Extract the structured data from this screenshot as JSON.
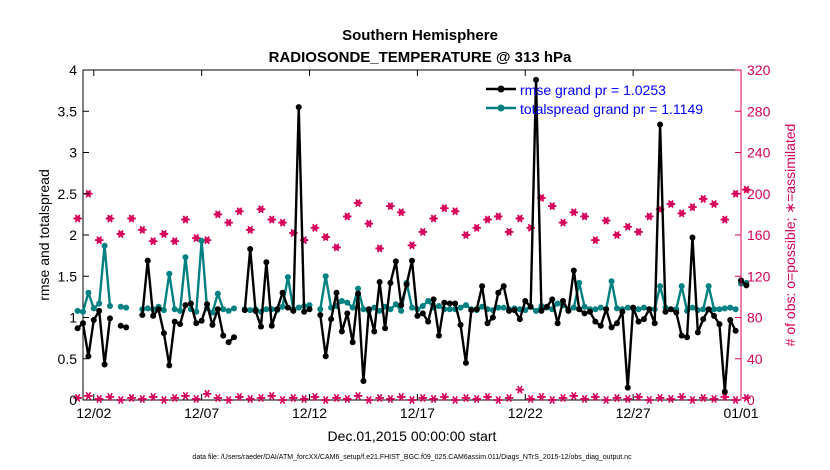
{
  "chart_data": {
    "type": "line",
    "title": "Southern Hemisphere",
    "subtitle": "RADIOSONDE_TEMPERATURE @ 313 hPa",
    "xlabel": "Dec.01,2015 00:00:00 start",
    "ylabel_left": "rmse and totalspread",
    "ylabel_right": "# of obs: o=possible; ∗=assimilated",
    "footnote": "data file: /Users/raeder/DAI/ATM_forcXX/CAM6_setup/f.e21.FHIST_BGC.f09_025.CAM6assim.011/Diags_NTrS_2015-12/obs_diag_output.nc",
    "xlim": [
      1.5,
      32.0
    ],
    "ylim_left": [
      0,
      4
    ],
    "ylim_right": [
      0,
      320
    ],
    "x_ticks": [
      2,
      7,
      12,
      17,
      22,
      27,
      32
    ],
    "x_tick_labels": [
      "12/02",
      "12/07",
      "12/12",
      "12/17",
      "12/22",
      "12/27",
      "01/01"
    ],
    "y_ticks_left": [
      0,
      0.5,
      1,
      1.5,
      2,
      2.5,
      3,
      3.5,
      4
    ],
    "y_tick_labels_left": [
      "0",
      "0.5",
      "1",
      "1.5",
      "2",
      "2.5",
      "3",
      "3.5",
      "4"
    ],
    "y_ticks_right": [
      0,
      40,
      80,
      120,
      160,
      200,
      240,
      280,
      320
    ],
    "y_tick_labels_right": [
      "0",
      "40",
      "80",
      "120",
      "160",
      "200",
      "240",
      "280",
      "320"
    ],
    "colors": {
      "rmse": "#000000",
      "spread": "#008080",
      "obs": "#d6005a",
      "legend_text": "#0000ff"
    },
    "legend": {
      "position": "top-right",
      "entries": [
        "rmse grand pr = 1.0253",
        "totalspread grand pr = 1.1149"
      ]
    },
    "series": [
      {
        "name": "rmse",
        "segments": [
          {
            "x": [
              1.25,
              1.5,
              1.75,
              2.0,
              2.25,
              2.5,
              2.75
            ],
            "y": [
              0.87,
              0.93,
              0.53,
              0.97,
              1.08,
              0.43,
              0.99
            ]
          },
          {
            "x": [
              3.25,
              3.5
            ],
            "y": [
              0.9,
              0.88
            ]
          },
          {
            "x": [
              4.25,
              4.5,
              4.75,
              5.0,
              5.25,
              5.5,
              5.75,
              6.0,
              6.25,
              6.5,
              6.75,
              7.0,
              7.25,
              7.5,
              7.75,
              8.0
            ],
            "y": [
              1.03,
              1.69,
              1.02,
              1.1,
              0.81,
              0.42,
              0.95,
              0.92,
              1.15,
              1.17,
              0.93,
              0.96,
              1.16,
              0.91,
              1.1,
              0.78
            ]
          },
          {
            "x": [
              8.25,
              8.5
            ],
            "y": [
              0.7,
              0.76
            ]
          },
          {
            "x": [
              9.0,
              9.25,
              9.5,
              9.75,
              10.0,
              10.25,
              10.5,
              10.75,
              11.0,
              11.25,
              11.5,
              11.75,
              12.0
            ],
            "y": [
              1.09,
              1.83,
              1.08,
              0.89,
              1.67,
              0.9,
              1.1,
              1.3,
              1.12,
              1.08,
              3.55,
              1.07,
              1.1
            ]
          },
          {
            "x": [
              12.5,
              12.75,
              13.0,
              13.25,
              13.5,
              13.75,
              14.0,
              14.25,
              14.5,
              14.75,
              15.0,
              15.25,
              15.5,
              15.75,
              16.0,
              16.25,
              16.5,
              16.75,
              17.0,
              17.25,
              17.5,
              17.75,
              18.0,
              18.25,
              18.5,
              18.75,
              19.0,
              19.25,
              19.5,
              19.75,
              20.0,
              20.25,
              20.5,
              20.75,
              21.0,
              21.25,
              21.5,
              21.75,
              22.0,
              22.25,
              22.5,
              22.75,
              23.0,
              23.25,
              23.5,
              23.75,
              24.0,
              24.25,
              24.5,
              24.75,
              25.0,
              25.25,
              25.5,
              25.75,
              26.0,
              26.25,
              26.5,
              26.75,
              27.0,
              27.25,
              27.5,
              27.75,
              28.0,
              28.25,
              28.5,
              28.75,
              29.0,
              29.25,
              29.5,
              29.75,
              30.0,
              30.25,
              30.5,
              30.75,
              31.0,
              31.25,
              31.5,
              31.75
            ],
            "y": [
              1.03,
              0.53,
              0.98,
              1.3,
              0.83,
              1.05,
              0.7,
              1.29,
              0.23,
              1.1,
              0.83,
              1.43,
              0.87,
              1.42,
              1.68,
              1.15,
              1.4,
              1.69,
              1.02,
              1.05,
              0.95,
              1.22,
              0.78,
              1.18,
              1.17,
              1.17,
              0.91,
              0.45,
              1.09,
              1.1,
              1.38,
              0.93,
              1.0,
              1.3,
              1.38,
              1.08,
              1.09,
              0.98,
              1.2,
              1.13,
              3.88,
              1.08,
              1.13,
              1.22,
              0.93,
              1.2,
              1.08,
              1.57,
              1.1,
              1.05,
              1.07,
              0.95,
              0.9,
              1.1,
              0.88,
              0.93,
              1.07,
              0.15,
              1.12,
              0.95,
              0.98,
              1.1,
              0.93,
              3.34,
              1.07,
              1.1,
              1.06,
              0.78,
              0.76,
              1.97,
              0.82,
              0.98,
              1.1,
              1.02,
              0.92,
              0.1,
              0.97,
              0.84
            ]
          },
          {
            "x": [
              32.0,
              32.25
            ],
            "y": [
              1.45,
              1.39
            ]
          }
        ]
      },
      {
        "name": "totalspread",
        "segments": [
          {
            "x": [
              1.25,
              1.5,
              1.75,
              2.0,
              2.25,
              2.5,
              2.75
            ],
            "y": [
              1.08,
              1.07,
              1.3,
              1.11,
              1.17,
              1.87,
              1.14
            ]
          },
          {
            "x": [
              3.25,
              3.5
            ],
            "y": [
              1.13,
              1.12
            ]
          },
          {
            "x": [
              4.25,
              4.5,
              4.75,
              5.0,
              5.25,
              5.5,
              5.75,
              6.0,
              6.25,
              6.5,
              6.75,
              7.0,
              7.25,
              7.5,
              7.75,
              8.0
            ],
            "y": [
              1.1,
              1.11,
              1.1,
              1.13,
              1.09,
              1.53,
              1.1,
              1.08,
              1.73,
              1.1,
              1.07,
              1.93,
              1.11,
              1.06,
              1.29,
              1.1
            ]
          },
          {
            "x": [
              8.25,
              8.5
            ],
            "y": [
              1.08,
              1.11
            ]
          },
          {
            "x": [
              9.0,
              9.25,
              9.5,
              9.75,
              10.0,
              10.25,
              10.5,
              10.75,
              11.0,
              11.25,
              11.5,
              11.75,
              12.0
            ],
            "y": [
              1.1,
              1.09,
              1.1,
              1.07,
              1.1,
              1.1,
              1.09,
              1.13,
              1.49,
              1.1,
              1.12,
              1.14,
              1.15
            ]
          },
          {
            "x": [
              12.5,
              12.75,
              13.0,
              13.25,
              13.5,
              13.75,
              14.0,
              14.25,
              14.5,
              14.75,
              15.0,
              15.25,
              15.5,
              15.75,
              16.0,
              16.25,
              16.5,
              16.75,
              17.0,
              17.25,
              17.5,
              17.75,
              18.0,
              18.25,
              18.5,
              18.75,
              19.0,
              19.25,
              19.5,
              19.75,
              20.0,
              20.25,
              20.5,
              20.75,
              21.0,
              21.25,
              21.5,
              21.75,
              22.0,
              22.25,
              22.5,
              22.75,
              23.0,
              23.25,
              23.5,
              23.75,
              24.0,
              24.25,
              24.5,
              24.75,
              25.0,
              25.25,
              25.5,
              25.75,
              26.0,
              26.25,
              26.5,
              26.75,
              27.0,
              27.25,
              27.5,
              27.75,
              28.0,
              28.25,
              28.5,
              28.75,
              29.0,
              29.25,
              29.5,
              29.75,
              30.0,
              30.25,
              30.5,
              30.75,
              31.0,
              31.25,
              31.5,
              31.75
            ],
            "y": [
              1.1,
              1.5,
              1.12,
              1.14,
              1.2,
              1.18,
              1.12,
              1.35,
              1.1,
              1.08,
              1.12,
              1.08,
              1.13,
              1.1,
              1.16,
              1.08,
              1.42,
              1.12,
              1.1,
              1.14,
              1.2,
              1.12,
              1.14,
              1.1,
              1.1,
              1.1,
              1.12,
              1.15,
              1.1,
              1.09,
              1.13,
              1.1,
              1.09,
              1.12,
              1.12,
              1.1,
              1.11,
              1.1,
              1.09,
              1.13,
              1.08,
              1.14,
              1.12,
              1.1,
              1.17,
              1.15,
              1.1,
              1.12,
              1.42,
              1.13,
              1.1,
              1.1,
              1.12,
              1.1,
              1.44,
              1.11,
              1.1,
              1.12,
              1.11,
              1.1,
              1.12,
              1.1,
              1.1,
              1.38,
              1.12,
              1.1,
              1.1,
              1.38,
              1.08,
              1.12,
              1.09,
              1.1,
              1.38,
              1.1,
              1.1,
              1.11,
              1.12,
              1.1
            ]
          },
          {
            "x": [
              32.0,
              32.25
            ],
            "y": [
              1.41,
              1.42
            ]
          }
        ]
      },
      {
        "name": "obs_possible",
        "axis": "right",
        "x": [
          1.25,
          1.75,
          2.25,
          2.75,
          3.25,
          3.75,
          4.25,
          4.75,
          5.25,
          5.75,
          6.25,
          6.75,
          7.25,
          7.75,
          8.25,
          8.75,
          9.25,
          9.75,
          10.25,
          10.75,
          11.25,
          11.75,
          12.25,
          12.75,
          13.25,
          13.75,
          14.25,
          14.75,
          15.25,
          15.75,
          16.25,
          16.75,
          17.25,
          17.75,
          18.25,
          18.75,
          19.25,
          19.75,
          20.25,
          20.75,
          21.25,
          21.75,
          22.25,
          22.75,
          23.25,
          23.75,
          24.25,
          24.75,
          25.25,
          25.75,
          26.25,
          26.75,
          27.25,
          27.75,
          28.25,
          28.75,
          29.25,
          29.75,
          30.25,
          30.75,
          31.25,
          31.75,
          32.25
        ],
        "y": [
          176,
          200,
          155,
          176,
          161,
          176,
          165,
          154,
          161,
          154,
          175,
          157,
          155,
          180,
          172,
          183,
          165,
          185,
          175,
          172,
          162,
          155,
          167,
          158,
          148,
          178,
          191,
          171,
          147,
          188,
          182,
          150,
          163,
          176,
          186,
          183,
          160,
          167,
          175,
          178,
          163,
          176,
          167,
          196,
          188,
          172,
          182,
          178,
          155,
          174,
          160,
          168,
          163,
          178,
          185,
          190,
          181,
          187,
          195,
          190,
          175,
          200,
          204
        ]
      },
      {
        "name": "obs_assimilated",
        "axis": "right",
        "x": [
          1.25,
          1.75,
          2.25,
          2.75,
          3.25,
          3.75,
          4.25,
          4.75,
          5.25,
          5.75,
          6.25,
          6.75,
          7.25,
          7.75,
          8.25,
          8.75,
          9.25,
          9.75,
          10.25,
          10.75,
          11.25,
          11.75,
          12.25,
          12.75,
          13.25,
          13.75,
          14.25,
          14.75,
          15.25,
          15.75,
          16.25,
          16.75,
          17.25,
          17.75,
          18.25,
          18.75,
          19.25,
          19.75,
          20.25,
          20.75,
          21.25,
          21.75,
          22.25,
          22.75,
          23.25,
          23.75,
          24.25,
          24.75,
          25.25,
          25.75,
          26.25,
          26.75,
          27.25,
          27.75,
          28.25,
          28.75,
          29.25,
          29.75,
          30.25,
          30.75,
          31.25,
          31.75,
          32.25
        ],
        "y": [
          2,
          4,
          1,
          3,
          0,
          2,
          1,
          3,
          0,
          2,
          4,
          1,
          6,
          2,
          0,
          3,
          1,
          2,
          4,
          0,
          2,
          1,
          3,
          0,
          2,
          1,
          4,
          0,
          2,
          1,
          3,
          0,
          2,
          1,
          3,
          0,
          2,
          1,
          3,
          0,
          2,
          10,
          1,
          3,
          0,
          2,
          4,
          1,
          3,
          0,
          2,
          1,
          3,
          0,
          2,
          1,
          3,
          0,
          2,
          1,
          3,
          0,
          2
        ]
      }
    ]
  }
}
